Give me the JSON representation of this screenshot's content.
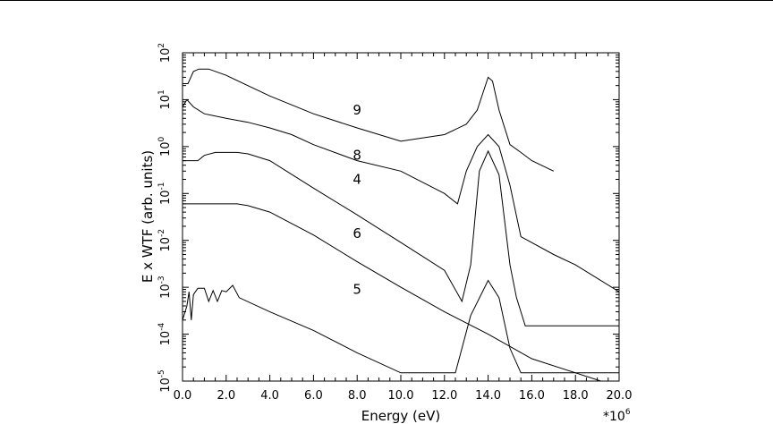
{
  "chart_data": {
    "type": "line",
    "xlabel": "Energy (eV)",
    "ylabel": "E x WTF (arb. units)",
    "x_multiplier": "*10",
    "x_multiplier_exp": "6",
    "xlim": [
      0.0,
      20.0
    ],
    "ylim": [
      1e-05,
      100
    ],
    "yscale": "log",
    "x_ticks": [
      "0.0",
      "2.0",
      "4.0",
      "6.0",
      "8.0",
      "10.0",
      "12.0",
      "14.0",
      "16.0",
      "18.0",
      "20.0"
    ],
    "y_ticks": [
      {
        "base": "10",
        "exp": "2"
      },
      {
        "base": "10",
        "exp": "1"
      },
      {
        "base": "10",
        "exp": "0"
      },
      {
        "base": "10",
        "exp": "-1"
      },
      {
        "base": "10",
        "exp": "-2"
      },
      {
        "base": "10",
        "exp": "-3"
      },
      {
        "base": "10",
        "exp": "-4"
      },
      {
        "base": "10",
        "exp": "-5"
      }
    ],
    "grid": false,
    "series": [
      {
        "name": "9",
        "label_at": [
          8.0,
          6.0
        ],
        "points": [
          [
            0.0,
            22
          ],
          [
            0.25,
            22
          ],
          [
            0.5,
            40
          ],
          [
            0.75,
            45
          ],
          [
            1.2,
            45
          ],
          [
            2.0,
            33
          ],
          [
            4.0,
            12
          ],
          [
            6.0,
            5
          ],
          [
            8.0,
            2.5
          ],
          [
            10.0,
            1.3
          ],
          [
            12.0,
            1.8
          ],
          [
            13.0,
            3
          ],
          [
            13.5,
            6
          ],
          [
            14.0,
            30
          ],
          [
            14.2,
            25
          ],
          [
            14.5,
            6
          ],
          [
            15.0,
            1.1
          ],
          [
            15.5,
            0.75
          ],
          [
            16.0,
            0.5
          ],
          [
            17.0,
            0.3
          ]
        ]
      },
      {
        "name": "8",
        "label_at": [
          8.0,
          0.65
        ],
        "points": [
          [
            0.0,
            7
          ],
          [
            0.2,
            10
          ],
          [
            0.5,
            7
          ],
          [
            1.0,
            5
          ],
          [
            2.0,
            4
          ],
          [
            3.0,
            3.3
          ],
          [
            4.0,
            2.5
          ],
          [
            5.0,
            1.8
          ],
          [
            6.0,
            1.1
          ],
          [
            8.0,
            0.5
          ],
          [
            10.0,
            0.3
          ],
          [
            12.0,
            0.1
          ],
          [
            12.6,
            0.06
          ],
          [
            13.0,
            0.3
          ],
          [
            13.5,
            1.0
          ],
          [
            14.0,
            1.8
          ],
          [
            14.5,
            1.0
          ],
          [
            15.0,
            0.15
          ],
          [
            15.5,
            0.012
          ],
          [
            17.0,
            0.005
          ],
          [
            18.0,
            0.003
          ],
          [
            20.0,
            0.0008
          ]
        ]
      },
      {
        "name": "4",
        "label_at": [
          8.0,
          0.2
        ],
        "points": [
          [
            0.0,
            0.5
          ],
          [
            0.7,
            0.5
          ],
          [
            1.0,
            0.65
          ],
          [
            1.5,
            0.75
          ],
          [
            2.5,
            0.75
          ],
          [
            3.0,
            0.7
          ],
          [
            4.0,
            0.5
          ],
          [
            6.0,
            0.13
          ],
          [
            8.0,
            0.035
          ],
          [
            10.0,
            0.009
          ],
          [
            12.0,
            0.0023
          ],
          [
            12.8,
            0.0005
          ],
          [
            13.2,
            0.003
          ],
          [
            13.6,
            0.3
          ],
          [
            14.0,
            0.8
          ],
          [
            14.5,
            0.25
          ],
          [
            15.0,
            0.003
          ],
          [
            15.3,
            0.0006
          ],
          [
            15.7,
            0.00015
          ],
          [
            20.0,
            0.00015
          ]
        ]
      },
      {
        "name": "6",
        "label_at": [
          8.0,
          0.014
        ],
        "points": [
          [
            0.0,
            0.06
          ],
          [
            2.5,
            0.06
          ],
          [
            3.0,
            0.055
          ],
          [
            4.0,
            0.04
          ],
          [
            6.0,
            0.013
          ],
          [
            8.0,
            0.0035
          ],
          [
            10.0,
            0.001
          ],
          [
            12.0,
            0.0003
          ],
          [
            14.0,
            0.0001
          ],
          [
            16.0,
            3e-05
          ],
          [
            20.0,
            7.5e-06
          ]
        ]
      },
      {
        "name": "5",
        "label_at": [
          8.0,
          0.0009
        ],
        "points": [
          [
            0.0,
            0.0002
          ],
          [
            0.2,
            0.0004
          ],
          [
            0.3,
            0.0008
          ],
          [
            0.4,
            0.0002
          ],
          [
            0.5,
            0.0007
          ],
          [
            0.7,
            0.00095
          ],
          [
            1.0,
            0.00095
          ],
          [
            1.2,
            0.0005
          ],
          [
            1.4,
            0.00085
          ],
          [
            1.6,
            0.0005
          ],
          [
            1.8,
            0.00085
          ],
          [
            2.0,
            0.0008
          ],
          [
            2.3,
            0.0011
          ],
          [
            2.6,
            0.0006
          ],
          [
            4.0,
            0.0003
          ],
          [
            6.0,
            0.00012
          ],
          [
            8.0,
            4e-05
          ],
          [
            10.0,
            1.5e-05
          ],
          [
            12.5,
            1.5e-05
          ],
          [
            13.2,
            0.00025
          ],
          [
            14.0,
            0.0014
          ],
          [
            14.5,
            0.0006
          ],
          [
            15.0,
            5e-05
          ],
          [
            15.5,
            1.5e-05
          ],
          [
            20.0,
            1.5e-05
          ]
        ]
      }
    ]
  }
}
